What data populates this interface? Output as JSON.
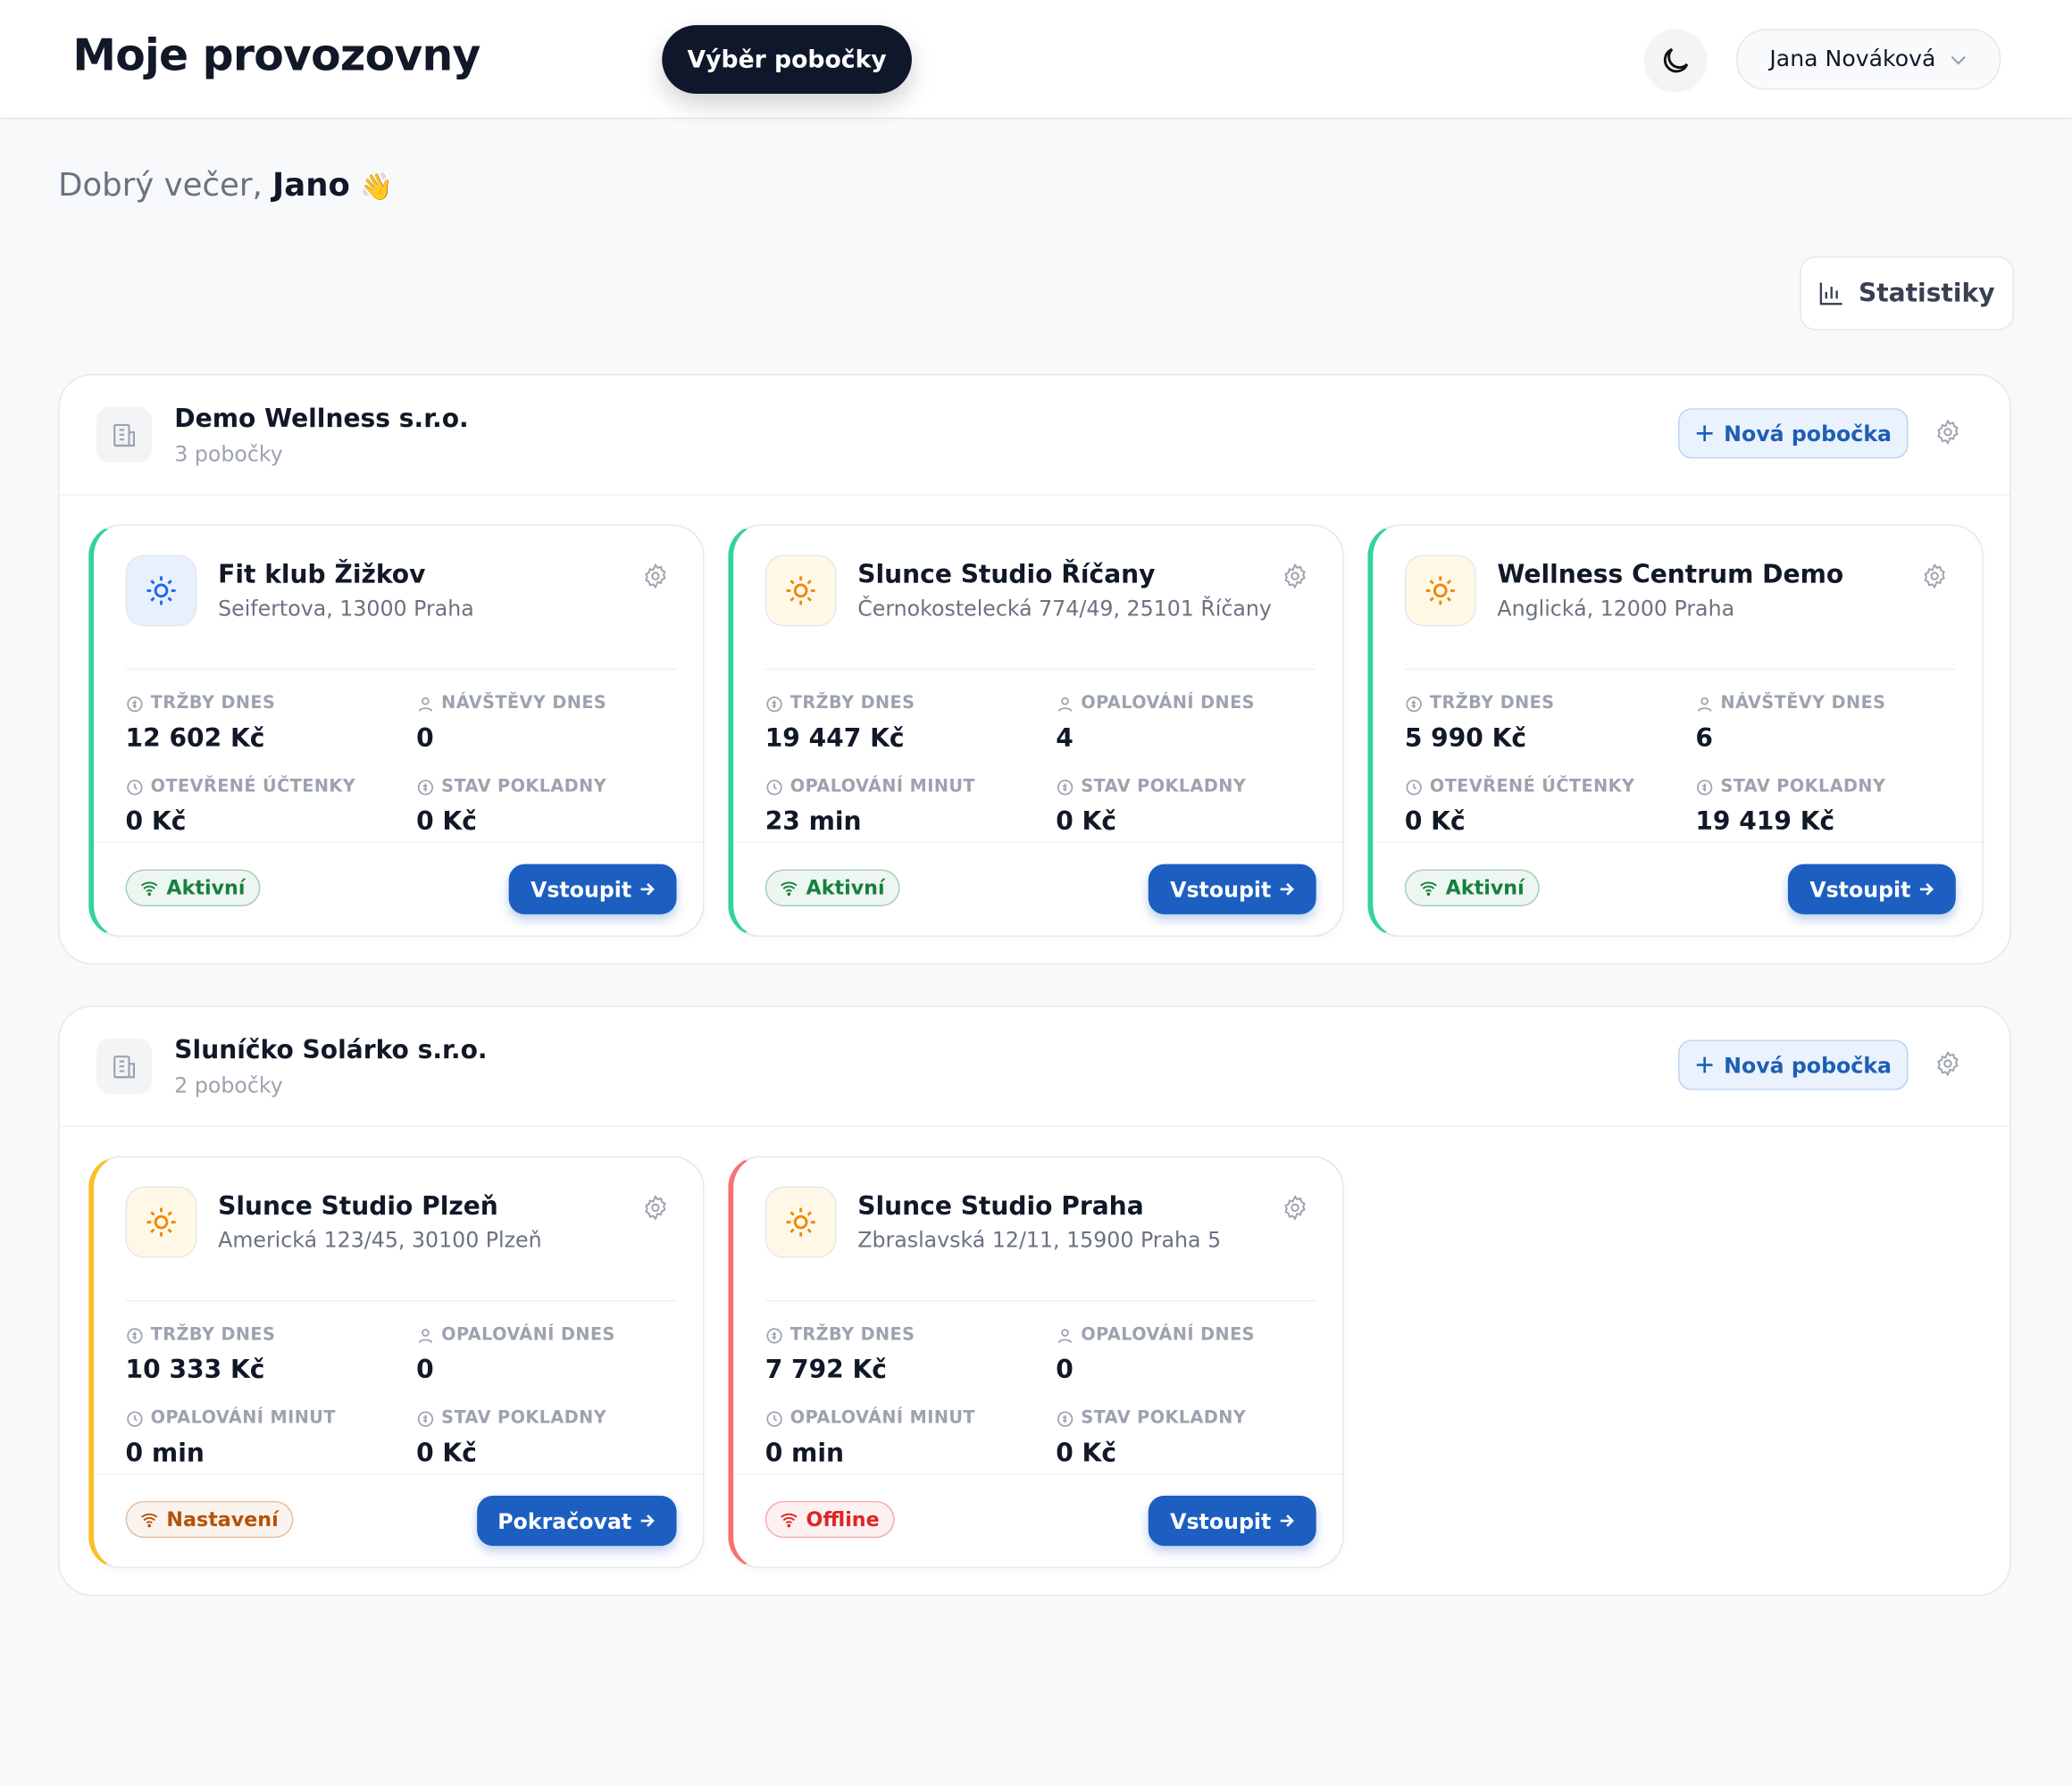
{
  "header": {
    "title": "Moje provozovny",
    "tab": "Výběr pobočky",
    "user": "Jana Nováková"
  },
  "greeting": {
    "prefix": "Dobrý večer,",
    "name": "Jano",
    "emoji": "👋"
  },
  "stats_button": "Statistiky",
  "companies": [
    {
      "name": "Demo Wellness s.r.o.",
      "count": "3 pobočky",
      "add_button": "Nová pobočka",
      "branches": [
        {
          "name": "Fit klub Žižkov",
          "address": "Seifertova, 13000 Praha",
          "accent_color": "#34d399",
          "icon_color": "#2563eb",
          "metrics": [
            {
              "label": "TRŽBY DNES",
              "value": "12 602 Kč"
            },
            {
              "label": "NÁVŠTĚVY DNES",
              "value": "0"
            },
            {
              "label": "OTEVŘENÉ ÚČTENKY",
              "value": "0 Kč"
            },
            {
              "label": "STAV POKLADNY",
              "value": "0 Kč"
            }
          ],
          "status": {
            "label": "Aktivní",
            "color": "#15803d"
          },
          "action": "Vstoupit"
        },
        {
          "name": "Slunce Studio Říčany",
          "address": "Černokostelecká 774/49, 25101 Říčany",
          "accent_color": "#34d399",
          "icon_color": "#ea8a0c",
          "metrics": [
            {
              "label": "TRŽBY DNES",
              "value": "19 447 Kč"
            },
            {
              "label": "OPALOVÁNÍ DNES",
              "value": "4"
            },
            {
              "label": "OPALOVÁNÍ MINUT",
              "value": "23 min"
            },
            {
              "label": "STAV POKLADNY",
              "value": "0 Kč"
            }
          ],
          "status": {
            "label": "Aktivní",
            "color": "#15803d"
          },
          "action": "Vstoupit"
        },
        {
          "name": "Wellness Centrum Demo",
          "address": "Anglická, 12000 Praha",
          "accent_color": "#34d399",
          "icon_color": "#ea8a0c",
          "metrics": [
            {
              "label": "TRŽBY DNES",
              "value": "5 990 Kč"
            },
            {
              "label": "NÁVŠTĚVY DNES",
              "value": "6"
            },
            {
              "label": "OTEVŘENÉ ÚČTENKY",
              "value": "0 Kč"
            },
            {
              "label": "STAV POKLADNY",
              "value": "19 419 Kč"
            }
          ],
          "status": {
            "label": "Aktivní",
            "color": "#15803d"
          },
          "action": "Vstoupit"
        }
      ]
    },
    {
      "name": "Sluníčko Solárko s.r.o.",
      "count": "2 pobočky",
      "add_button": "Nová pobočka",
      "branches": [
        {
          "name": "Slunce Studio Plzeň",
          "address": "Americká 123/45, 30100 Plzeň",
          "accent_color": "#fbbf24",
          "icon_color": "#ea8a0c",
          "metrics": [
            {
              "label": "TRŽBY DNES",
              "value": "10 333 Kč"
            },
            {
              "label": "OPALOVÁNÍ DNES",
              "value": "0"
            },
            {
              "label": "OPALOVÁNÍ MINUT",
              "value": "0 min"
            },
            {
              "label": "STAV POKLADNY",
              "value": "0 Kč"
            }
          ],
          "status": {
            "label": "Nastavení",
            "color": "#b45309"
          },
          "action": "Pokračovat"
        },
        {
          "name": "Slunce Studio Praha",
          "address": "Zbraslavská 12/11, 15900 Praha 5",
          "accent_color": "#f87171",
          "icon_color": "#ea8a0c",
          "metrics": [
            {
              "label": "TRŽBY DNES",
              "value": "7 792 Kč"
            },
            {
              "label": "OPALOVÁNÍ DNES",
              "value": "0"
            },
            {
              "label": "OPALOVÁNÍ MINUT",
              "value": "0 min"
            },
            {
              "label": "STAV POKLADNY",
              "value": "0 Kč"
            }
          ],
          "status": {
            "label": "Offline",
            "color": "#dc2626"
          },
          "action": "Vstoupit"
        }
      ]
    }
  ]
}
